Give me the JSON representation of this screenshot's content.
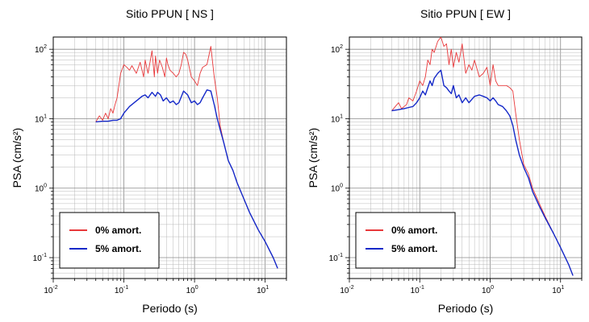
{
  "chart_data": [
    {
      "type": "line",
      "title": "Sitio PPUN [ NS ]",
      "xlabel": "Periodo (s)",
      "ylabel": "PSA (cm/s²)",
      "xscale": "log",
      "yscale": "log",
      "xlim": [
        0.01,
        20
      ],
      "ylim": [
        0.05,
        150
      ],
      "grid": true,
      "legend_position": "bottom-left",
      "x_ticks": [
        {
          "base": "10",
          "exp": "-2"
        },
        {
          "base": "10",
          "exp": "-1"
        },
        {
          "base": "10",
          "exp": "0"
        },
        {
          "base": "10",
          "exp": "1"
        }
      ],
      "y_ticks": [
        {
          "base": "10",
          "exp": "-1"
        },
        {
          "base": "10",
          "exp": "0"
        },
        {
          "base": "10",
          "exp": "1"
        },
        {
          "base": "10",
          "exp": "2"
        }
      ],
      "series": [
        {
          "name": "0% amort.",
          "color": "#e8383a",
          "x": [
            0.04,
            0.045,
            0.05,
            0.055,
            0.06,
            0.065,
            0.07,
            0.075,
            0.08,
            0.09,
            0.1,
            0.11,
            0.12,
            0.13,
            0.15,
            0.17,
            0.19,
            0.2,
            0.22,
            0.25,
            0.27,
            0.28,
            0.3,
            0.32,
            0.35,
            0.38,
            0.4,
            0.42,
            0.45,
            0.5,
            0.55,
            0.6,
            0.65,
            0.7,
            0.75,
            0.8,
            0.9,
            1.0,
            1.1,
            1.2,
            1.3,
            1.5,
            1.7,
            1.9,
            2.1,
            2.3,
            2.6,
            3.0,
            3.5,
            4.0,
            5.0,
            6.0,
            8.0,
            10.0,
            13.0,
            15.0
          ],
          "y": [
            9,
            11,
            9.5,
            12,
            10,
            14,
            12,
            16,
            20,
            45,
            60,
            55,
            50,
            58,
            45,
            65,
            40,
            70,
            45,
            95,
            40,
            80,
            45,
            70,
            55,
            40,
            75,
            60,
            50,
            45,
            40,
            45,
            60,
            90,
            85,
            70,
            40,
            35,
            30,
            45,
            55,
            60,
            110,
            40,
            20,
            8,
            4.5,
            2.5,
            1.8,
            1.2,
            0.7,
            0.45,
            0.25,
            0.17,
            0.1,
            0.07
          ]
        },
        {
          "name": "5% amort.",
          "color": "#1428c8",
          "x": [
            0.04,
            0.05,
            0.06,
            0.07,
            0.08,
            0.09,
            0.1,
            0.12,
            0.14,
            0.16,
            0.18,
            0.2,
            0.22,
            0.25,
            0.28,
            0.3,
            0.33,
            0.36,
            0.4,
            0.45,
            0.5,
            0.55,
            0.6,
            0.7,
            0.8,
            0.9,
            1.0,
            1.1,
            1.2,
            1.3,
            1.5,
            1.7,
            1.9,
            2.1,
            2.3,
            2.6,
            3.0,
            3.5,
            4.0,
            5.0,
            6.0,
            8.0,
            10.0,
            13.0,
            15.0
          ],
          "y": [
            9,
            9.2,
            9.2,
            9.5,
            9.5,
            10,
            12,
            15,
            17,
            19,
            21,
            22,
            20,
            24,
            21,
            24,
            22,
            18,
            20,
            17,
            18,
            16,
            17,
            25,
            22,
            17,
            18,
            16,
            17,
            20,
            26,
            25,
            16,
            10,
            7,
            4.5,
            2.5,
            1.8,
            1.2,
            0.7,
            0.45,
            0.25,
            0.17,
            0.1,
            0.07
          ]
        }
      ]
    },
    {
      "type": "line",
      "title": "Sitio PPUN [ EW ]",
      "xlabel": "Periodo (s)",
      "ylabel": "PSA (cm/s²)",
      "xscale": "log",
      "yscale": "log",
      "xlim": [
        0.01,
        20
      ],
      "ylim": [
        0.05,
        150
      ],
      "grid": true,
      "legend_position": "bottom-left",
      "x_ticks": [
        {
          "base": "10",
          "exp": "-2"
        },
        {
          "base": "10",
          "exp": "-1"
        },
        {
          "base": "10",
          "exp": "0"
        },
        {
          "base": "10",
          "exp": "1"
        }
      ],
      "y_ticks": [
        {
          "base": "10",
          "exp": "-1"
        },
        {
          "base": "10",
          "exp": "0"
        },
        {
          "base": "10",
          "exp": "1"
        },
        {
          "base": "10",
          "exp": "2"
        }
      ],
      "series": [
        {
          "name": "0% amort.",
          "color": "#e8383a",
          "x": [
            0.04,
            0.05,
            0.055,
            0.06,
            0.065,
            0.07,
            0.08,
            0.09,
            0.1,
            0.11,
            0.12,
            0.13,
            0.14,
            0.15,
            0.16,
            0.18,
            0.2,
            0.22,
            0.24,
            0.26,
            0.28,
            0.3,
            0.33,
            0.36,
            0.4,
            0.45,
            0.5,
            0.55,
            0.6,
            0.7,
            0.8,
            0.9,
            1.0,
            1.1,
            1.2,
            1.3,
            1.5,
            1.7,
            1.9,
            2.1,
            2.3,
            2.6,
            3.0,
            3.5,
            4.0,
            5.0,
            6.0,
            8.0,
            10.0,
            13.0,
            15.0
          ],
          "y": [
            13,
            17,
            14,
            15,
            16,
            20,
            18,
            25,
            35,
            30,
            40,
            70,
            60,
            100,
            90,
            130,
            150,
            110,
            120,
            60,
            100,
            55,
            90,
            65,
            120,
            45,
            60,
            50,
            70,
            40,
            45,
            55,
            30,
            60,
            35,
            30,
            30,
            30,
            28,
            25,
            12,
            5,
            2.2,
            1.6,
            1.0,
            0.6,
            0.4,
            0.22,
            0.14,
            0.08,
            0.055
          ]
        },
        {
          "name": "5% amort.",
          "color": "#1428c8",
          "x": [
            0.04,
            0.05,
            0.06,
            0.07,
            0.08,
            0.09,
            0.1,
            0.11,
            0.12,
            0.13,
            0.14,
            0.15,
            0.16,
            0.18,
            0.2,
            0.22,
            0.24,
            0.26,
            0.28,
            0.3,
            0.33,
            0.36,
            0.4,
            0.45,
            0.5,
            0.55,
            0.6,
            0.7,
            0.8,
            0.9,
            1.0,
            1.1,
            1.2,
            1.3,
            1.5,
            1.7,
            1.9,
            2.1,
            2.3,
            2.6,
            3.0,
            3.5,
            4.0,
            5.0,
            6.0,
            8.0,
            10.0,
            13.0,
            15.0
          ],
          "y": [
            13,
            13.5,
            14,
            14.5,
            15,
            17,
            20,
            25,
            22,
            28,
            35,
            30,
            38,
            45,
            50,
            30,
            28,
            25,
            23,
            30,
            20,
            22,
            17,
            20,
            17,
            19,
            21,
            22,
            21,
            20,
            18,
            20,
            18,
            16,
            15,
            13,
            11,
            8,
            5,
            3,
            2.0,
            1.4,
            0.9,
            0.55,
            0.38,
            0.22,
            0.14,
            0.08,
            0.055
          ]
        }
      ]
    }
  ]
}
